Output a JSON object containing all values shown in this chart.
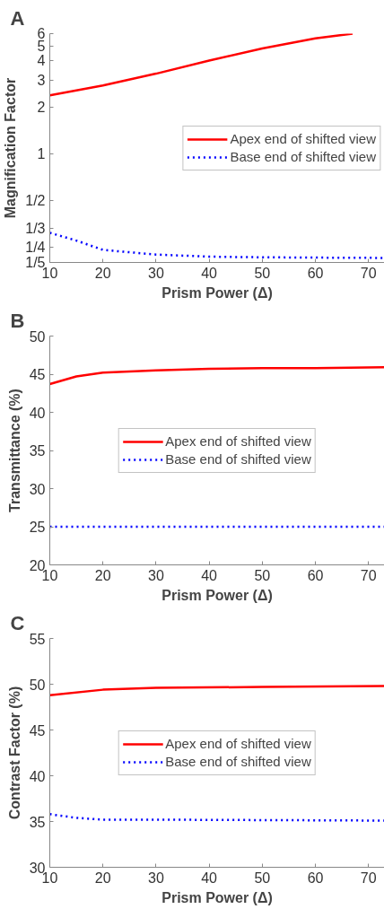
{
  "chart_data": [
    {
      "type": "line",
      "title": "A",
      "xlabel": "Prism Power (Δ)",
      "ylabel": "Magnification Factor",
      "log": "y",
      "xlim": [
        10,
        73
      ],
      "xticks": [
        10,
        20,
        30,
        40,
        50,
        60,
        70
      ],
      "ylim": [
        0.2,
        6
      ],
      "yticks": [
        {
          "value": 0.2,
          "label": "1/5"
        },
        {
          "value": 0.25,
          "label": "1/4"
        },
        {
          "value": 0.3333,
          "label": "1/3"
        },
        {
          "value": 0.5,
          "label": "1/2"
        },
        1,
        2,
        3,
        4,
        5,
        6
      ],
      "legend": "right",
      "grid": false,
      "series": [
        {
          "name": "Apex end of shifted view",
          "color": "#ff0000",
          "line_style": "solid",
          "x": [
            10,
            20,
            30,
            40,
            50,
            60,
            67
          ],
          "values": [
            2.4,
            2.78,
            3.31,
            4.02,
            4.81,
            5.6,
            6.0
          ]
        },
        {
          "name": "Base end of shifted view",
          "color": "#0000ff",
          "line_style": "dotted",
          "x": [
            10,
            15,
            20,
            30,
            40,
            50,
            60,
            73
          ],
          "values": [
            0.311,
            0.277,
            0.241,
            0.225,
            0.218,
            0.216,
            0.215,
            0.214
          ]
        }
      ]
    },
    {
      "type": "line",
      "title": "B",
      "xlabel": "Prism Power (Δ)",
      "ylabel": "Transmittance (%)",
      "xlim": [
        10,
        73
      ],
      "xticks": [
        10,
        20,
        30,
        40,
        50,
        60,
        70
      ],
      "ylim": [
        20,
        50
      ],
      "yticks": [
        20,
        25,
        30,
        35,
        40,
        45,
        50
      ],
      "legend": "center",
      "grid": false,
      "series": [
        {
          "name": "Apex end of shifted view",
          "color": "#ff0000",
          "line_style": "solid",
          "x": [
            10,
            15,
            20,
            30,
            40,
            50,
            60,
            73
          ],
          "values": [
            43.7,
            44.7,
            45.2,
            45.5,
            45.7,
            45.8,
            45.8,
            45.9
          ]
        },
        {
          "name": "Base end of shifted view",
          "color": "#0000ff",
          "line_style": "dotted",
          "x": [
            10,
            73
          ],
          "values": [
            25,
            25
          ]
        }
      ]
    },
    {
      "type": "line",
      "title": "C",
      "xlabel": "Prism Power (Δ)",
      "ylabel": "Contrast Factor (%)",
      "xlim": [
        10,
        73
      ],
      "xticks": [
        10,
        20,
        30,
        40,
        50,
        60,
        70
      ],
      "ylim": [
        30,
        55
      ],
      "yticks": [
        30,
        35,
        40,
        45,
        50,
        55
      ],
      "legend": "center",
      "grid": false,
      "series": [
        {
          "name": "Apex end of shifted view",
          "color": "#ff0000",
          "line_style": "solid",
          "x": [
            10,
            20,
            30,
            50,
            73
          ],
          "values": [
            48.8,
            49.4,
            49.6,
            49.7,
            49.8
          ]
        },
        {
          "name": "Base end of shifted view",
          "color": "#0000ff",
          "line_style": "dotted",
          "x": [
            10,
            15,
            20,
            30,
            73
          ],
          "values": [
            35.8,
            35.4,
            35.2,
            35.2,
            35.1
          ]
        }
      ]
    }
  ]
}
